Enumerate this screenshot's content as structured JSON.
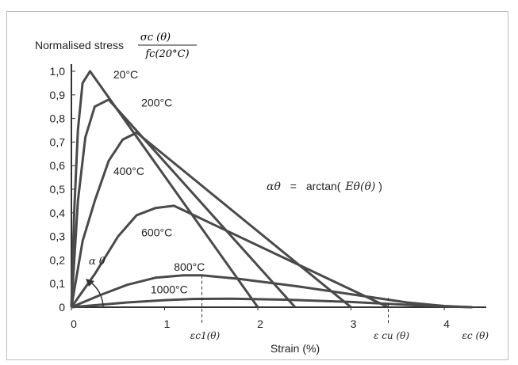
{
  "chart_data": {
    "type": "line",
    "title": "Normalised stress",
    "ratio": {
      "numerator": "σc (θ)",
      "denominator": "fc(20°C)"
    },
    "xlabel": "Strain (%)",
    "xlim": [
      0,
      4.4
    ],
    "ylim": [
      0,
      1.0
    ],
    "x_ticks": [
      "0",
      "1",
      "2",
      "3",
      "4"
    ],
    "y_ticks": [
      "0",
      "0,1",
      "0,2",
      "0,3",
      "0,4",
      "0,5",
      "0,6",
      "0,7",
      "0,8",
      "0,9",
      "1,0"
    ],
    "formula": {
      "lhs": "αθ",
      "eq": "=",
      "fn": "arctan(",
      "arg": "Eθ(θ)",
      "close": ")"
    },
    "angle_label": "α θ",
    "strain_marks": [
      {
        "label": "εc1(θ)",
        "x": 1.4,
        "y_top": 0.135
      },
      {
        "label": "ε cu (θ)",
        "x": 3.4,
        "y_top": 0.04
      },
      {
        "label": "εc (θ)",
        "x": 4.3,
        "y_top": 0.0
      }
    ],
    "series": [
      {
        "name": "20°C",
        "label_at": [
          0.45,
          0.97
        ],
        "points": [
          [
            0,
            0
          ],
          [
            0.03,
            0.4
          ],
          [
            0.07,
            0.75
          ],
          [
            0.12,
            0.95
          ],
          [
            0.2,
            1.0
          ],
          [
            2.0,
            0
          ]
        ]
      },
      {
        "name": "200°C",
        "label_at": [
          0.75,
          0.85
        ],
        "points": [
          [
            0,
            0
          ],
          [
            0.07,
            0.45
          ],
          [
            0.15,
            0.72
          ],
          [
            0.25,
            0.85
          ],
          [
            0.4,
            0.88
          ],
          [
            2.4,
            0
          ]
        ]
      },
      {
        "name": "400°C",
        "label_at": [
          0.45,
          0.56
        ],
        "points": [
          [
            0,
            0
          ],
          [
            0.12,
            0.28
          ],
          [
            0.25,
            0.45
          ],
          [
            0.4,
            0.62
          ],
          [
            0.55,
            0.71
          ],
          [
            0.7,
            0.74
          ],
          [
            3.0,
            0
          ]
        ]
      },
      {
        "name": "600°C",
        "label_at": [
          0.75,
          0.3
        ],
        "points": [
          [
            0,
            0
          ],
          [
            0.25,
            0.14
          ],
          [
            0.5,
            0.3
          ],
          [
            0.7,
            0.39
          ],
          [
            0.9,
            0.42
          ],
          [
            1.1,
            0.43
          ],
          [
            3.4,
            0
          ]
        ]
      },
      {
        "name": "800°C",
        "label_at": [
          1.1,
          0.155
        ],
        "points": [
          [
            0,
            0
          ],
          [
            0.3,
            0.05
          ],
          [
            0.6,
            0.095
          ],
          [
            0.9,
            0.125
          ],
          [
            1.2,
            0.135
          ],
          [
            1.4,
            0.135
          ],
          [
            1.8,
            0.12
          ],
          [
            2.4,
            0.09
          ],
          [
            3.0,
            0.055
          ],
          [
            3.6,
            0.02
          ],
          [
            4.0,
            0.005
          ],
          [
            4.3,
            0
          ]
        ]
      },
      {
        "name": "1000°C",
        "label_at": [
          0.85,
          0.058
        ],
        "points": [
          [
            0,
            0
          ],
          [
            0.3,
            0.01
          ],
          [
            0.6,
            0.02
          ],
          [
            1.0,
            0.03
          ],
          [
            1.3,
            0.035
          ],
          [
            1.7,
            0.036
          ],
          [
            2.3,
            0.032
          ],
          [
            3.0,
            0.022
          ],
          [
            3.6,
            0.01
          ],
          [
            4.0,
            0.003
          ],
          [
            4.3,
            0
          ]
        ]
      }
    ]
  }
}
